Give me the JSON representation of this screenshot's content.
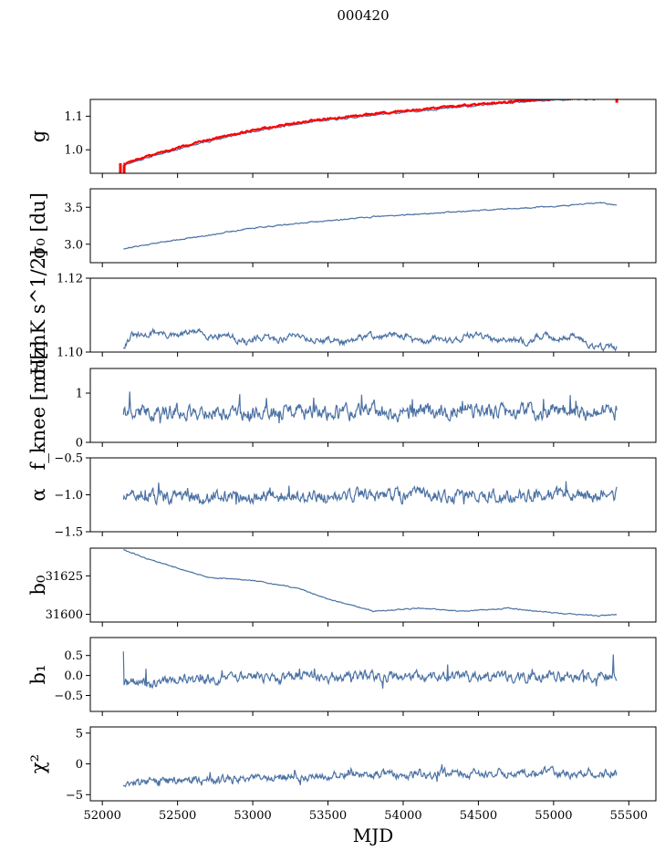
{
  "figure_title": "000420",
  "colors": {
    "series": "#4c72a4",
    "highlight": "#ff0000",
    "axis": "#000000"
  },
  "chart_data": [
    {
      "type": "line",
      "ylabel": "g",
      "ylim": [
        0.93,
        1.15
      ],
      "yticks": [
        1.0,
        1.1
      ],
      "ytick_labels": [
        "1.0",
        "1.1"
      ],
      "xlim": [
        51920,
        55680
      ],
      "trend": [
        [
          52140,
          0.955
        ],
        [
          52400,
          0.99
        ],
        [
          52700,
          1.025
        ],
        [
          53000,
          1.055
        ],
        [
          53400,
          1.083
        ],
        [
          53800,
          1.103
        ],
        [
          54200,
          1.12
        ],
        [
          54600,
          1.136
        ],
        [
          55000,
          1.148
        ],
        [
          55420,
          1.152
        ]
      ],
      "noise": 0.002,
      "seed": 11,
      "overlay": {
        "color": "#ff0000",
        "offset": 0.004,
        "seed": 12,
        "spikes": [
          [
            52120,
            0.96,
            0.93
          ],
          [
            52145,
            0.955,
            0.93
          ],
          [
            55420,
            1.152,
            1.14
          ]
        ]
      }
    },
    {
      "type": "line",
      "ylabel": "σ₀ [du]",
      "ylim": [
        2.75,
        3.75
      ],
      "yticks": [
        3.0,
        3.5
      ],
      "ytick_labels": [
        "3.0",
        "3.5"
      ],
      "xlim": [
        51920,
        55680
      ],
      "trend": [
        [
          52140,
          2.94
        ],
        [
          52400,
          3.03
        ],
        [
          52700,
          3.12
        ],
        [
          53000,
          3.22
        ],
        [
          53400,
          3.3
        ],
        [
          53800,
          3.37
        ],
        [
          54200,
          3.42
        ],
        [
          54600,
          3.47
        ],
        [
          55000,
          3.51
        ],
        [
          55300,
          3.56
        ],
        [
          55420,
          3.53
        ]
      ],
      "noise": 0.006,
      "seed": 21
    },
    {
      "type": "line",
      "ylabel": "σ₀[mK s^1/2]",
      "ylim": [
        1.1,
        1.12
      ],
      "yticks": [
        1.1,
        1.12
      ],
      "ytick_labels": [
        "1.10",
        "1.12"
      ],
      "xlim": [
        51920,
        55680
      ],
      "trend": [
        [
          52140,
          1.1005
        ],
        [
          52200,
          1.1045
        ],
        [
          52350,
          1.1057
        ],
        [
          52600,
          1.1045
        ],
        [
          52900,
          1.104
        ],
        [
          53200,
          1.1035
        ],
        [
          53600,
          1.1035
        ],
        [
          54000,
          1.104
        ],
        [
          54400,
          1.1035
        ],
        [
          54800,
          1.104
        ],
        [
          55100,
          1.1035
        ],
        [
          55420,
          1.1015
        ]
      ],
      "noise": 0.0007,
      "wave": 0.0012,
      "seed": 31
    },
    {
      "type": "line",
      "ylabel": "f_knee [mHz]",
      "ylim": [
        0.0,
        1.5
      ],
      "yticks": [
        0,
        1
      ],
      "ytick_labels": [
        "0",
        "1"
      ],
      "xlim": [
        51920,
        55680
      ],
      "trend": [
        [
          52140,
          0.62
        ],
        [
          55420,
          0.62
        ]
      ],
      "noise": 0.12,
      "spike_prob": 0.04,
      "spike_amp": 0.35,
      "seed": 41
    },
    {
      "type": "line",
      "ylabel": "α",
      "ylim": [
        -1.5,
        -0.5
      ],
      "yticks": [
        -1.5,
        -1.0,
        -0.5
      ],
      "ytick_labels": [
        "−1.5",
        "−1.0",
        "−0.5"
      ],
      "xlim": [
        51920,
        55680
      ],
      "trend": [
        [
          52140,
          -1.03
        ],
        [
          55420,
          -1.0
        ]
      ],
      "noise": 0.07,
      "spike_prob": 0.03,
      "spike_amp": 0.15,
      "seed": 51
    },
    {
      "type": "line",
      "ylabel": "b₀",
      "ylim": [
        31595,
        31643
      ],
      "yticks": [
        31600,
        31625
      ],
      "ytick_labels": [
        "31600",
        "31625"
      ],
      "xlim": [
        51920,
        55680
      ],
      "trend": [
        [
          52140,
          31642
        ],
        [
          52300,
          31636
        ],
        [
          52500,
          31630
        ],
        [
          52700,
          31624
        ],
        [
          53000,
          31622
        ],
        [
          53300,
          31617
        ],
        [
          53500,
          31610
        ],
        [
          53800,
          31602
        ],
        [
          54100,
          31604
        ],
        [
          54400,
          31602
        ],
        [
          54700,
          31604
        ],
        [
          55000,
          31601
        ],
        [
          55300,
          31599
        ],
        [
          55420,
          31600
        ]
      ],
      "noise": 0.25,
      "seed": 61
    },
    {
      "type": "line",
      "ylabel": "b₁",
      "ylim": [
        -0.9,
        0.95
      ],
      "yticks": [
        -0.5,
        0.0,
        0.5
      ],
      "ytick_labels": [
        "−0.5",
        "0.0",
        "0.5"
      ],
      "xlim": [
        51920,
        55680
      ],
      "trend": [
        [
          52140,
          -0.2
        ],
        [
          52500,
          -0.12
        ],
        [
          53000,
          -0.05
        ],
        [
          54000,
          -0.02
        ],
        [
          54800,
          -0.05
        ],
        [
          55420,
          0.02
        ]
      ],
      "noise": 0.1,
      "spike_prob": 0.02,
      "spike_amp": 0.4,
      "seed": 71,
      "start_value": 0.6
    },
    {
      "type": "line",
      "ylabel": "χ²",
      "ylim": [
        -6,
        6
      ],
      "yticks": [
        -5,
        0,
        5
      ],
      "ytick_labels": [
        "−5",
        "0",
        "5"
      ],
      "xlim": [
        51920,
        55680
      ],
      "xticks": [
        52000,
        52500,
        53000,
        53500,
        54000,
        54500,
        55000,
        55500
      ],
      "xtick_labels": [
        "52000",
        "52500",
        "53000",
        "53500",
        "54000",
        "54500",
        "55000",
        "55500"
      ],
      "xlabel": "MJD",
      "trend": [
        [
          52140,
          -3.2
        ],
        [
          52600,
          -2.6
        ],
        [
          53200,
          -2.2
        ],
        [
          53800,
          -1.8
        ],
        [
          54500,
          -1.5
        ],
        [
          55420,
          -1.5
        ]
      ],
      "noise": 0.55,
      "spike_prob": 0.03,
      "spike_amp": 1.5,
      "seed": 81
    }
  ]
}
